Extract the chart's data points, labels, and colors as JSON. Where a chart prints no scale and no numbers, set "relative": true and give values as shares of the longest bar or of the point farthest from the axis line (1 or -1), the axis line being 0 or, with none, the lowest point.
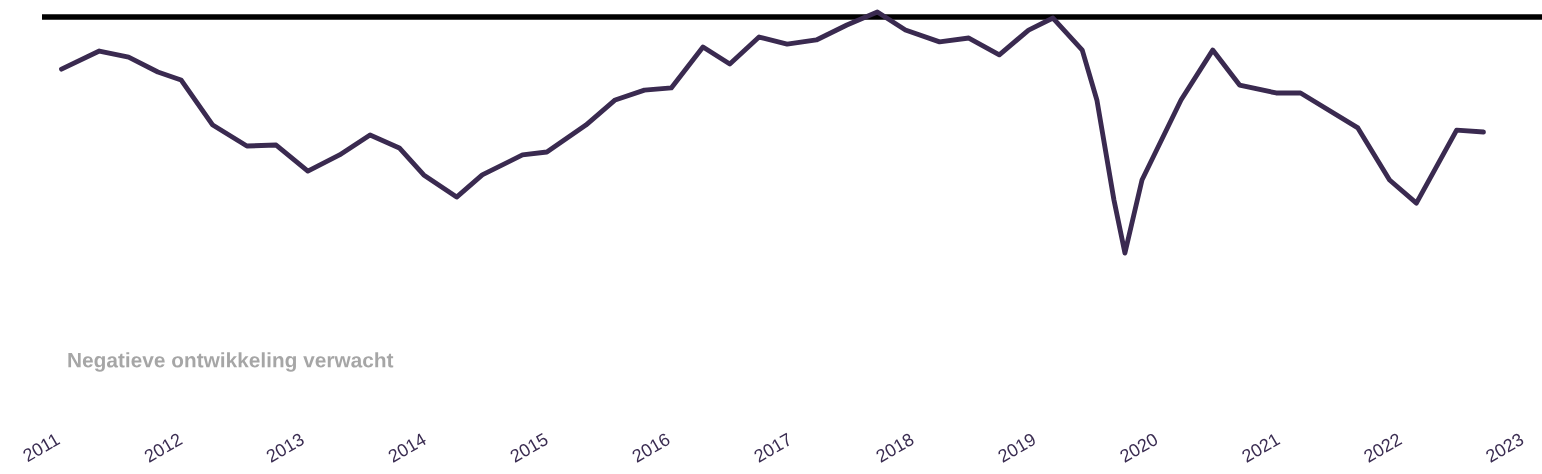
{
  "chart_data": {
    "type": "line",
    "relative": true,
    "x": [
      2011.16,
      2011.47,
      2011.71,
      2011.95,
      2012.14,
      2012.4,
      2012.68,
      2012.92,
      2013.18,
      2013.44,
      2013.69,
      2013.93,
      2014.13,
      2014.4,
      2014.61,
      2014.94,
      2015.14,
      2015.46,
      2015.7,
      2015.94,
      2016.16,
      2016.42,
      2016.64,
      2016.88,
      2017.11,
      2017.35,
      2017.6,
      2017.85,
      2018.08,
      2018.36,
      2018.6,
      2018.85,
      2019.09,
      2019.29,
      2019.53,
      2019.65,
      2019.79,
      2019.88,
      2020.02,
      2020.34,
      2020.6,
      2020.82,
      2021.12,
      2021.32,
      2021.79,
      2022.05,
      2022.27,
      2022.6,
      2022.82
    ],
    "series": [
      {
        "color": "#3a2a50",
        "values": [
          0.763,
          0.838,
          0.813,
          0.751,
          0.718,
          0.531,
          0.444,
          0.448,
          0.34,
          0.407,
          0.49,
          0.436,
          0.324,
          0.232,
          0.324,
          0.407,
          0.419,
          0.531,
          0.635,
          0.676,
          0.685,
          0.855,
          0.784,
          0.896,
          0.867,
          0.884,
          0.946,
          1.0,
          0.925,
          0.876,
          0.892,
          0.822,
          0.925,
          0.975,
          0.842,
          0.635,
          0.22,
          0.0,
          0.303,
          0.635,
          0.842,
          0.697,
          0.664,
          0.664,
          0.519,
          0.303,
          0.207,
          0.51,
          0.502
        ]
      }
    ],
    "xlim": [
      2011,
      2023.3
    ],
    "xticks": [
      2011,
      2012,
      2013,
      2014,
      2015,
      2016,
      2017,
      2018,
      2019,
      2020,
      2021,
      2022,
      2023
    ],
    "ref_lines": [
      {
        "axis": "y",
        "value": 0.979,
        "color": "#000000"
      }
    ],
    "annotations": [
      "Negatieve ontwikkeling verwacht"
    ],
    "grid": false,
    "legend": false,
    "marker": "none",
    "line_style": "solid"
  }
}
